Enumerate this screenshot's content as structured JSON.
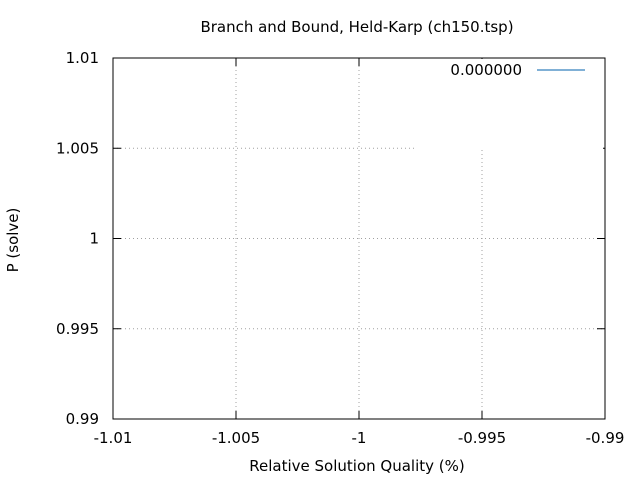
{
  "chart_data": {
    "type": "line",
    "title": "Branch and Bound, Held-Karp (ch150.tsp)",
    "xlabel": "Relative Solution Quality (%)",
    "ylabel": "P (solve)",
    "xlim": [
      -1.01,
      -0.99
    ],
    "ylim": [
      0.99,
      1.01
    ],
    "x_ticks": [
      -1.01,
      -1.005,
      -1,
      -0.995,
      -0.99
    ],
    "x_tick_labels": [
      "-1.01",
      "-1.005",
      "-1",
      "-0.995",
      "-0.99"
    ],
    "y_ticks": [
      0.99,
      0.995,
      1,
      1.005,
      1.01
    ],
    "y_tick_labels": [
      "0.99",
      "0.995",
      "1",
      "1.005",
      "1.01"
    ],
    "grid": true,
    "legend_position": "top-right",
    "series": [
      {
        "name": "0.000000",
        "color": "#0060ad",
        "x": [],
        "y": []
      }
    ]
  }
}
